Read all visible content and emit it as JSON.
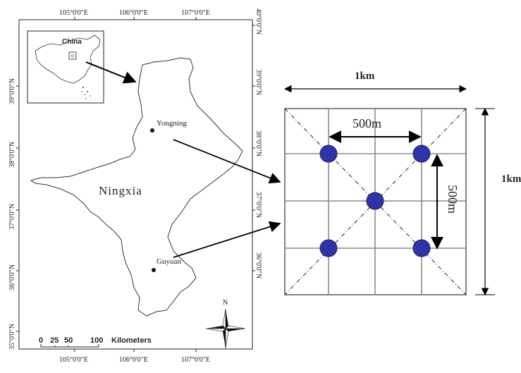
{
  "map": {
    "region_label": "Ningxia",
    "inset_label": "China",
    "north_label": "N",
    "longitude_labels": [
      "105°0'0\"E",
      "106°0'0\"E",
      "107°0'0\"E"
    ],
    "latitude_labels": [
      "40°0'0\"N",
      "39°0'0\"N",
      "38°0'0\"N",
      "37°0'0\"N",
      "36°0'0\"N",
      "35°0'0\"N"
    ],
    "scale_bar": {
      "ticks": [
        "0",
        "25",
        "50",
        "100"
      ],
      "unit": "Kilometers"
    },
    "sites": [
      {
        "name": "Yongning"
      },
      {
        "name": "Guyuan"
      }
    ]
  },
  "plot_design": {
    "width_label": "1km",
    "height_label": "1km",
    "spacing_h_label": "500m",
    "spacing_v_label": "500m",
    "colors": {
      "sample_point": "#2e33a6",
      "grid": "#8c8c8c"
    }
  }
}
